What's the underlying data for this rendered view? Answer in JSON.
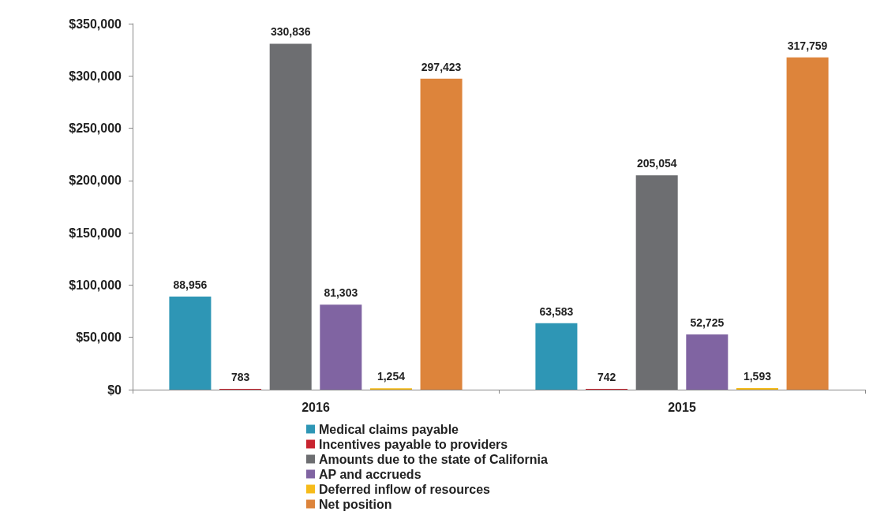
{
  "chart_data": {
    "type": "bar",
    "categories": [
      "2016",
      "2015"
    ],
    "series": [
      {
        "name": "Medical claims payable",
        "color": "#2e96b5",
        "values": [
          88956,
          63583
        ],
        "value_labels": [
          "88,956",
          "63,583"
        ]
      },
      {
        "name": "Incentives payable to providers",
        "color": "#c8242f",
        "values": [
          783,
          742
        ],
        "value_labels": [
          "783",
          "742"
        ]
      },
      {
        "name": "Amounts due to the state of California",
        "color": "#6d6e71",
        "values": [
          330836,
          205054
        ],
        "value_labels": [
          "330,836",
          "205,054"
        ]
      },
      {
        "name": "AP and accrueds",
        "color": "#8064a2",
        "values": [
          81303,
          52725
        ],
        "value_labels": [
          "81,303",
          "52,725"
        ]
      },
      {
        "name": "Deferred inflow of resources",
        "color": "#f6bb1a",
        "values": [
          1254,
          1593
        ],
        "value_labels": [
          "1,254",
          "1,593"
        ]
      },
      {
        "name": "Net position",
        "color": "#dd843b",
        "values": [
          297423,
          317759
        ],
        "value_labels": [
          "297,423",
          "317,759"
        ]
      }
    ],
    "ylim": [
      0,
      350000
    ],
    "yticks": [
      {
        "value": 0,
        "label": "$0"
      },
      {
        "value": 50000,
        "label": "$50,000"
      },
      {
        "value": 100000,
        "label": "$100,000"
      },
      {
        "value": 150000,
        "label": "$150,000"
      },
      {
        "value": 200000,
        "label": "$200,000"
      },
      {
        "value": 250000,
        "label": "$250,000"
      },
      {
        "value": 300000,
        "label": "$300,000"
      },
      {
        "value": 350000,
        "label": "$350,000"
      }
    ],
    "grid": false,
    "legend": "bottom"
  }
}
